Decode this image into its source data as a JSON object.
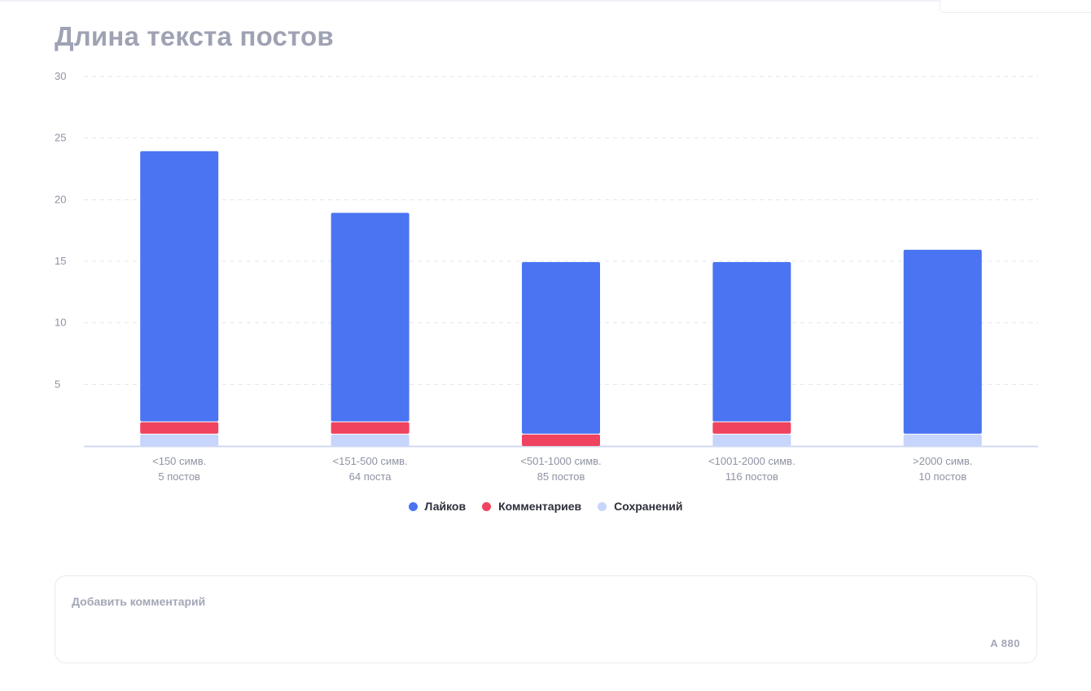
{
  "page": {
    "title": "Длина текста постов"
  },
  "colors": {
    "likes": "#4b74f3",
    "comments": "#f0435f",
    "saves": "#c7d4fb",
    "grid": "#e2e5ec",
    "axis": "#d0d9f0",
    "tick_text": "#8f93a3"
  },
  "chart_data": {
    "type": "bar",
    "stacked": true,
    "title": "Длина текста постов",
    "xlabel": "",
    "ylabel": "",
    "ylim": [
      0,
      30
    ],
    "yticks": [
      5,
      10,
      15,
      20,
      25,
      30
    ],
    "grid": true,
    "legend_position": "bottom-center",
    "categories": [
      {
        "label": "<150 симв.",
        "sublabel": "5 постов"
      },
      {
        "label": "<151-500 симв.",
        "sublabel": "64 поста"
      },
      {
        "label": "<501-1000 симв.",
        "sublabel": "85 постов"
      },
      {
        "label": "<1001-2000 симв.",
        "sublabel": "116 постов"
      },
      {
        "label": ">2000 симв.",
        "sublabel": "10 постов"
      }
    ],
    "series": [
      {
        "name": "Сохранений",
        "color_key": "saves",
        "values": [
          1,
          1,
          0,
          1,
          1
        ]
      },
      {
        "name": "Комментариев",
        "color_key": "comments",
        "values": [
          1,
          1,
          1,
          1,
          0
        ]
      },
      {
        "name": "Лайков",
        "color_key": "likes",
        "values": [
          22,
          17,
          14,
          13,
          15
        ]
      }
    ]
  },
  "legend": {
    "items": [
      {
        "label": "Лайков",
        "color_key": "likes"
      },
      {
        "label": "Комментариев",
        "color_key": "comments"
      },
      {
        "label": "Сохранений",
        "color_key": "saves"
      }
    ]
  },
  "comment": {
    "placeholder": "Добавить комментарий",
    "value": "",
    "counter_icon": "A",
    "counter": "880"
  }
}
